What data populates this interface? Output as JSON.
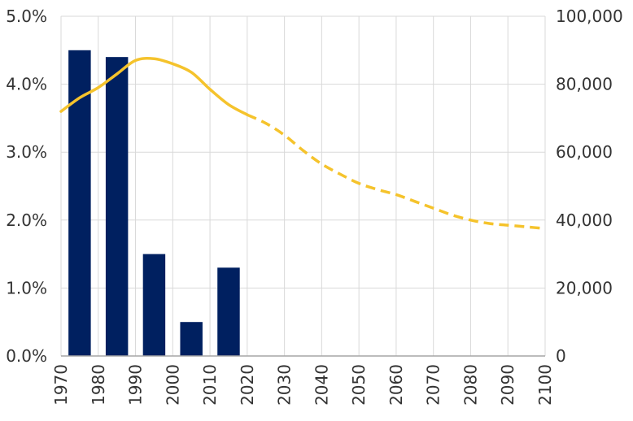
{
  "chart_data": {
    "type": "bar",
    "title": "",
    "xlabel": "",
    "ylabel": "",
    "y2label": "",
    "grid": true,
    "xlim": [
      1970,
      2100
    ],
    "ylim": [
      0,
      5
    ],
    "y2lim": [
      0,
      100000
    ],
    "x_ticks": [
      "1970",
      "1980",
      "1990",
      "2000",
      "2010",
      "2020",
      "2030",
      "2040",
      "2050",
      "2060",
      "2070",
      "2080",
      "2090",
      "2100"
    ],
    "y_ticks": [
      "0.0%",
      "1.0%",
      "2.0%",
      "3.0%",
      "4.0%",
      "5.0%"
    ],
    "y2_ticks": [
      "0",
      "20,000",
      "40,000",
      "60,000",
      "80,000",
      "100,000"
    ],
    "bars": {
      "color": "#002060",
      "axis": "left",
      "x": [
        1975,
        1985,
        1995,
        2005,
        2015
      ],
      "values": [
        4.5,
        4.4,
        1.5,
        0.5,
        1.3
      ]
    },
    "line": {
      "color": "#f5c32c",
      "axis": "right",
      "solid_until": 2020,
      "x": [
        1970,
        1975,
        1980,
        1985,
        1990,
        1995,
        2000,
        2005,
        2010,
        2015,
        2020,
        2025,
        2030,
        2035,
        2040,
        2045,
        2050,
        2055,
        2060,
        2065,
        2070,
        2075,
        2080,
        2085,
        2090,
        2095,
        2100
      ],
      "values": [
        72000,
        76000,
        79000,
        83000,
        87000,
        87500,
        86000,
        83500,
        78500,
        74000,
        71000,
        68500,
        65000,
        60500,
        56500,
        53500,
        50800,
        49000,
        47500,
        45500,
        43500,
        41500,
        40000,
        39000,
        38500,
        38000,
        37500
      ]
    }
  }
}
